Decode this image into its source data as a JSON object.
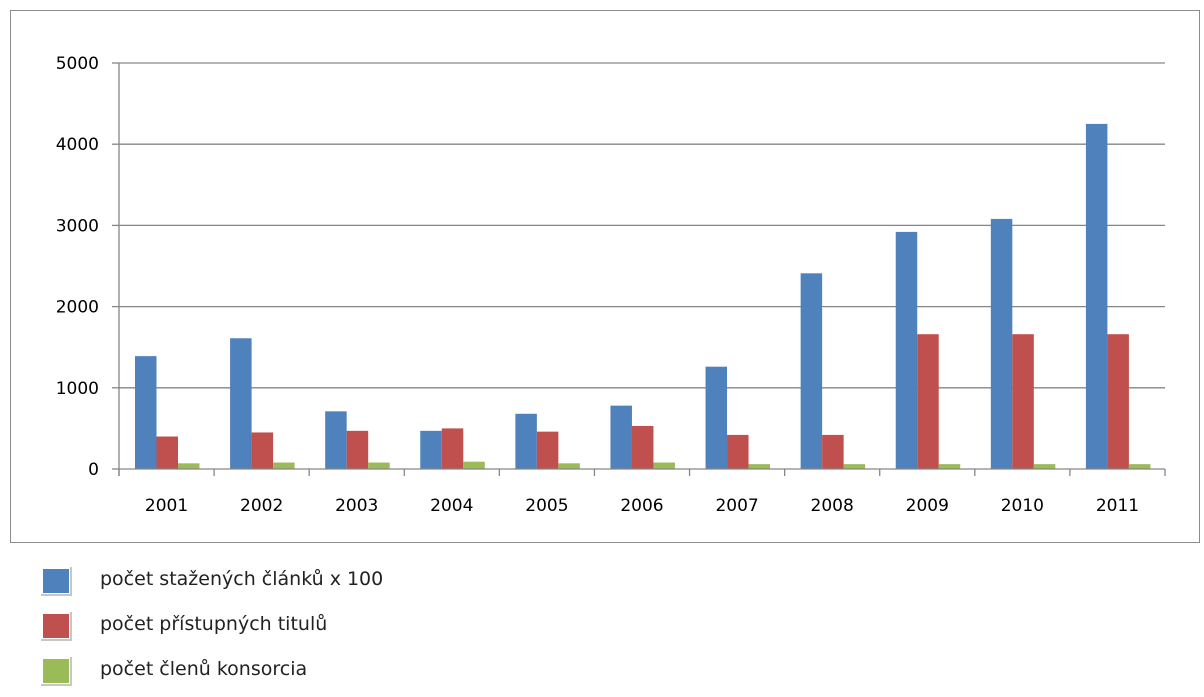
{
  "chart_data": {
    "type": "bar",
    "categories": [
      "2001",
      "2002",
      "2003",
      "2004",
      "2005",
      "2006",
      "2007",
      "2008",
      "2009",
      "2010",
      "2011"
    ],
    "series": [
      {
        "name": "počet stažených článků x 100",
        "color": "#4f81bd",
        "values": [
          1390,
          1610,
          710,
          470,
          680,
          780,
          1260,
          2410,
          2920,
          3080,
          4250
        ]
      },
      {
        "name": "počet přístupných titulů",
        "color": "#c0504d",
        "values": [
          400,
          450,
          470,
          500,
          460,
          530,
          420,
          420,
          1660,
          1660,
          1660
        ]
      },
      {
        "name": "počet členů konsorcia",
        "color": "#9bbb59",
        "values": [
          70,
          80,
          80,
          90,
          70,
          80,
          60,
          60,
          60,
          60,
          60
        ]
      }
    ],
    "ylim": [
      0,
      5000
    ],
    "yticks": [
      "0",
      "1000",
      "2000",
      "3000",
      "4000",
      "5000"
    ],
    "grid": true,
    "legend_position": "bottom-left, outside plot",
    "gridline_color": "#868686"
  }
}
